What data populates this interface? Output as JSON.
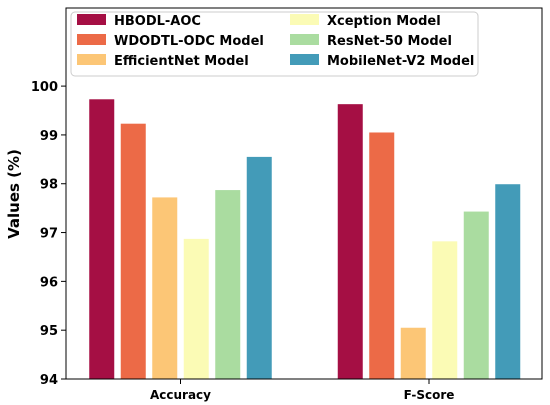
{
  "chart_data": {
    "type": "bar",
    "title": "",
    "xlabel": "",
    "ylabel": "Values (%)",
    "ylim": [
      94,
      101.6
    ],
    "yticks": [
      94,
      95,
      96,
      97,
      98,
      99,
      100
    ],
    "grid": false,
    "legend_position": "top",
    "categories": [
      "Accuracy",
      "F-Score"
    ],
    "series": [
      {
        "name": "HBODL-AOC",
        "color": "#a50f44",
        "values": [
          99.73,
          99.63
        ]
      },
      {
        "name": "WDODTL-ODC Model",
        "color": "#ec6a47",
        "values": [
          99.23,
          99.05
        ]
      },
      {
        "name": "EfficientNet Model",
        "color": "#fcc676",
        "values": [
          97.72,
          95.05
        ]
      },
      {
        "name": "Xception Model",
        "color": "#fbfbb5",
        "values": [
          96.87,
          96.82
        ]
      },
      {
        "name": "ResNet-50 Model",
        "color": "#aadca0",
        "values": [
          97.87,
          97.43
        ]
      },
      {
        "name": "MobileNet-V2 Model",
        "color": "#439bb8",
        "values": [
          98.55,
          97.99
        ]
      }
    ]
  }
}
